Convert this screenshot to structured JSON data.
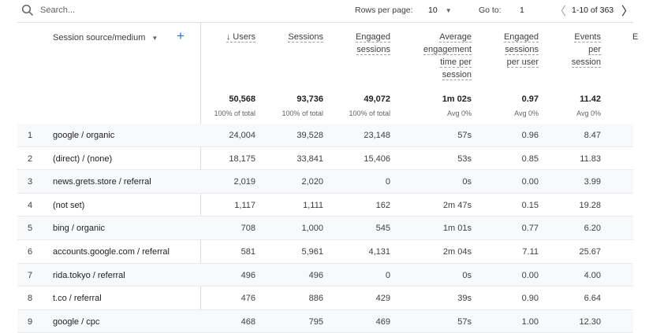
{
  "toolbar": {
    "search_placeholder": "Search...",
    "rows_per_page_label": "Rows per page:",
    "rows_per_page_value": "10",
    "goto_label": "Go to:",
    "goto_value": "1",
    "pagination": "1-10 of 363"
  },
  "table": {
    "dimension_header": "Session source/medium",
    "columns": [
      {
        "label": "↓ Users",
        "total": "50,568",
        "sub": "100% of total"
      },
      {
        "label": "Sessions",
        "total": "93,736",
        "sub": "100% of total"
      },
      {
        "label": "Engaged sessions",
        "total": "49,072",
        "sub": "100% of total"
      },
      {
        "label": "Average engagement time per session",
        "total": "1m 02s",
        "sub": "Avg 0%"
      },
      {
        "label": "Engaged sessions per user",
        "total": "0.97",
        "sub": "Avg 0%"
      },
      {
        "label": "Events per session",
        "total": "11.42",
        "sub": "Avg 0%"
      },
      {
        "label": "E"
      }
    ],
    "rows": [
      [
        "1",
        "google / organic",
        "24,004",
        "39,528",
        "23,148",
        "57s",
        "0.96",
        "8.47"
      ],
      [
        "2",
        "(direct) / (none)",
        "18,175",
        "33,841",
        "15,406",
        "53s",
        "0.85",
        "11.83"
      ],
      [
        "3",
        "news.grets.store / referral",
        "2,019",
        "2,020",
        "0",
        "0s",
        "0.00",
        "3.99"
      ],
      [
        "4",
        "(not set)",
        "1,117",
        "1,111",
        "162",
        "2m 47s",
        "0.15",
        "19.28"
      ],
      [
        "5",
        "bing / organic",
        "708",
        "1,000",
        "545",
        "1m 01s",
        "0.77",
        "6.20"
      ],
      [
        "6",
        "accounts.google.com / referral",
        "581",
        "5,961",
        "4,131",
        "2m 04s",
        "7.11",
        "25.67"
      ],
      [
        "7",
        "rida.tokyo / referral",
        "496",
        "496",
        "0",
        "0s",
        "0.00",
        "4.00"
      ],
      [
        "8",
        "t.co / referral",
        "476",
        "886",
        "429",
        "39s",
        "0.90",
        "6.64"
      ],
      [
        "9",
        "google / cpc",
        "468",
        "795",
        "469",
        "57s",
        "1.00",
        "12.30"
      ]
    ]
  },
  "colors": {
    "accent": "#1a73e8",
    "row_alt": "#f8f9fa"
  }
}
